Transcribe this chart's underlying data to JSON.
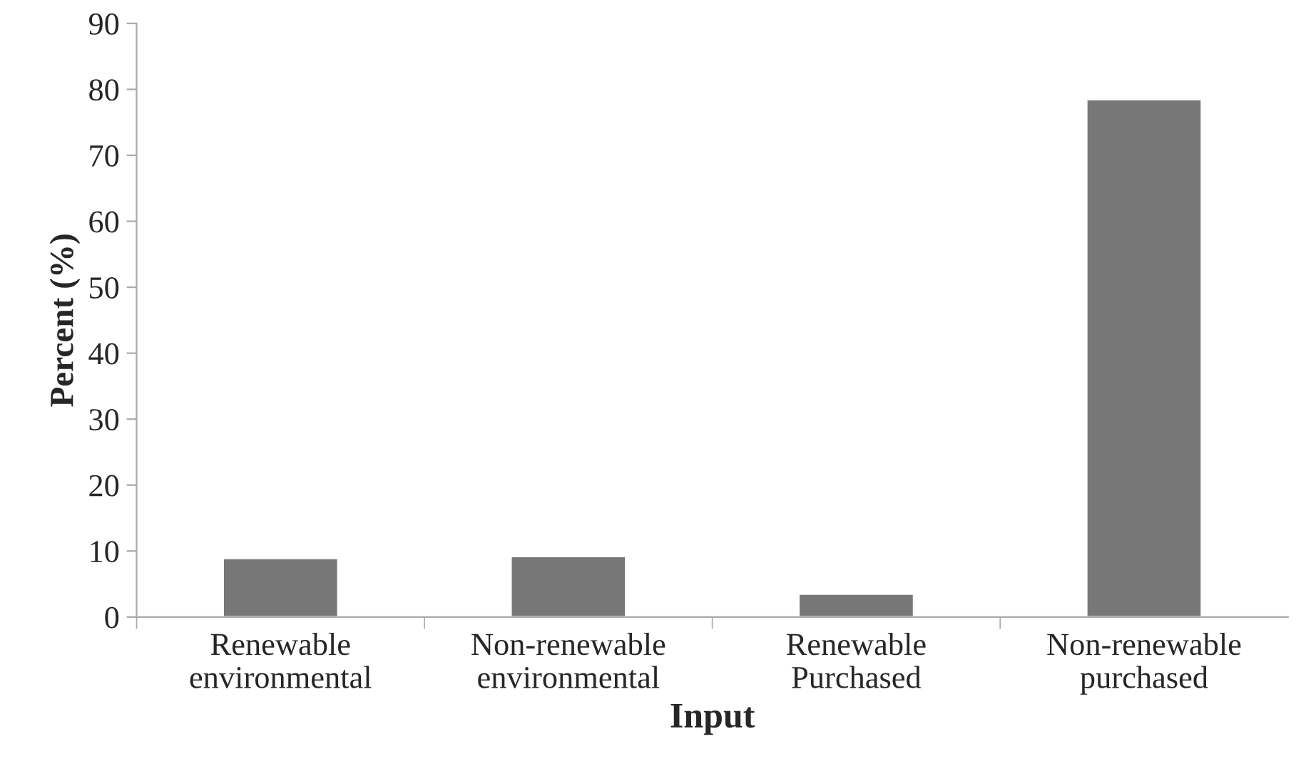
{
  "chart_data": {
    "type": "bar",
    "xlabel": "Input",
    "ylabel": "Percent (%)",
    "categories": [
      "Renewable\nenvironmental",
      "Non-renewable\nenvironmental",
      "Renewable\nPurchased",
      "Non-renewable\npurchased"
    ],
    "values": [
      8.9,
      9.2,
      3.5,
      78.5
    ],
    "color": "#777777",
    "ylim": [
      0,
      90
    ],
    "yticks": [
      0,
      10,
      20,
      30,
      40,
      50,
      60,
      70,
      80,
      90
    ],
    "grid": false,
    "legend": false
  }
}
